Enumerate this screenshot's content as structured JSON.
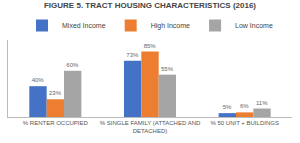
{
  "chart_data": {
    "type": "bar",
    "title": "FIGURE 5. TRACT HOUSING CHARACTERISTICS (2016)",
    "categories": [
      "% RENTER OCCUPIED",
      "% SINGLE FAMILY (ATTACHED AND\nDETACHED)",
      "% 50 UNIT + BUILDINGS"
    ],
    "series": [
      {
        "name": "Mixed Income",
        "color": "#4472C4",
        "values": [
          40,
          73,
          5
        ],
        "value_labels": [
          "40%",
          "73%",
          "5%"
        ]
      },
      {
        "name": "High Income",
        "color": "#ED7D31",
        "values": [
          23,
          85,
          6
        ],
        "value_labels": [
          "23%",
          "85%",
          "6%"
        ]
      },
      {
        "name": "Low Income",
        "color": "#A5A5A5",
        "values": [
          60,
          55,
          11
        ],
        "value_labels": [
          "60%",
          "55%",
          "11%"
        ]
      }
    ],
    "ylim": [
      0,
      100
    ],
    "grid": false,
    "legend": "top",
    "data_labels": true,
    "tick_labels": "x"
  }
}
